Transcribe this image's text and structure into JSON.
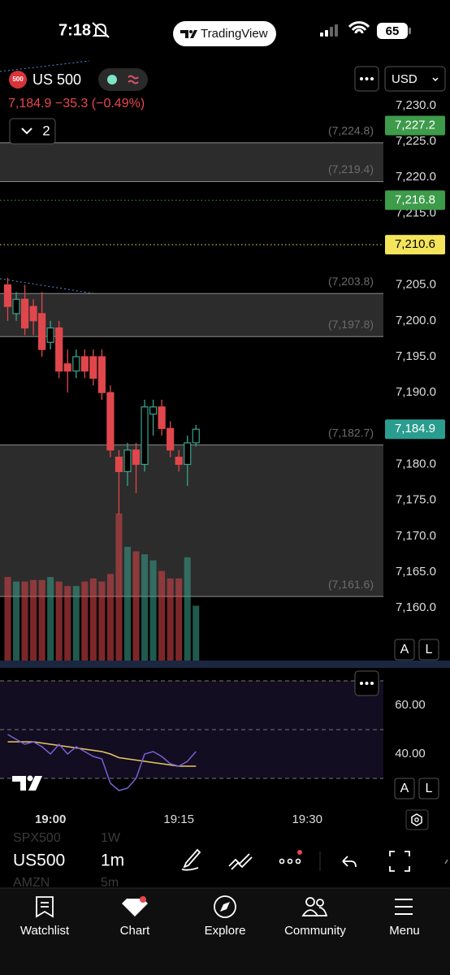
{
  "status_bar": {
    "time": "7:18",
    "battery": "65",
    "pill": "TradingView"
  },
  "header": {
    "badge": "500",
    "symbol": "US 500",
    "last": "7,184.9",
    "change": "−35.3",
    "change_pct": "(−0.49%)",
    "collapse_count": "2",
    "currency": "USD"
  },
  "chart_data": {
    "type": "candlestick",
    "x": [
      -5,
      -4,
      -3,
      -2,
      -1,
      0,
      1,
      2,
      3,
      4,
      5,
      6,
      7,
      8,
      9,
      10,
      11,
      12,
      13,
      14,
      15,
      16,
      17
    ],
    "open": [
      7205,
      7201,
      7203,
      7202,
      7201,
      7197,
      7199,
      7194,
      7193,
      7195,
      7195,
      7195,
      7190,
      7181,
      7179,
      7182,
      7180,
      7187,
      7188,
      7185,
      7181,
      7180,
      7183
    ],
    "high": [
      7206,
      7204,
      7205,
      7203,
      7204,
      7200,
      7200,
      7196,
      7196,
      7196,
      7196,
      7196,
      7191,
      7182,
      7183,
      7183,
      7189,
      7189,
      7189,
      7186,
      7182,
      7184,
      7185.5
    ],
    "low": [
      7200,
      7200,
      7198,
      7198,
      7195,
      7196,
      7192,
      7190,
      7192,
      7192,
      7191,
      7189,
      7181,
      7173,
      7177,
      7176,
      7179,
      7184,
      7184,
      7181,
      7179,
      7177,
      7182.5
    ],
    "close": [
      7202,
      7203,
      7199,
      7200,
      7196,
      7199,
      7193,
      7193,
      7195,
      7193,
      7192,
      7190,
      7182,
      7179,
      7182,
      7180,
      7188,
      7188,
      7185,
      7182,
      7180,
      7183,
      7184.9
    ],
    "volume": [
      58,
      55,
      55,
      56,
      56,
      58,
      55,
      52,
      52,
      55,
      57,
      55,
      60,
      100,
      78,
      75,
      73,
      69,
      62,
      57,
      57,
      71,
      39
    ],
    "up_color": "#3aa38c",
    "down_color": "#e0474c",
    "xlim": [
      -5.9,
      38.9
    ],
    "ylim": [
      7152.1,
      7237.9
    ],
    "xticks": [
      {
        "value": 0,
        "label": "19:00"
      },
      {
        "value": 15,
        "label": "19:15"
      },
      {
        "value": 30,
        "label": "19:30"
      }
    ],
    "yticks": [
      {
        "value": 7230,
        "label": "7,230.0"
      },
      {
        "value": 7225,
        "label": "7,225.0"
      },
      {
        "value": 7220,
        "label": "7,220.0"
      },
      {
        "value": 7215,
        "label": "7,215.0"
      },
      {
        "value": 7210,
        "label": "7,210.0"
      },
      {
        "value": 7205,
        "label": "7,205.0"
      },
      {
        "value": 7200,
        "label": "7,200.0"
      },
      {
        "value": 7195,
        "label": "7,195.0"
      },
      {
        "value": 7190,
        "label": "7,190.0"
      },
      {
        "value": 7185,
        "label": "7,185.0"
      },
      {
        "value": 7180,
        "label": "7,180.0"
      },
      {
        "value": 7175,
        "label": "7,175.0"
      },
      {
        "value": 7170,
        "label": "7,170.0"
      },
      {
        "value": 7165,
        "label": "7,165.0"
      },
      {
        "value": 7160,
        "label": "7,160.0"
      }
    ],
    "zones": [
      {
        "top": 7224.8,
        "bottom": 7219.4,
        "top_label": "(7,224.8)",
        "bottom_label": "(7,219.4)"
      },
      {
        "top": 7203.8,
        "bottom": 7197.8,
        "top_label": "(7,203.8)",
        "bottom_label": "(7,197.8)"
      },
      {
        "top": 7182.7,
        "bottom": 7161.6,
        "top_label": "(7,182.7)",
        "bottom_label": "(7,161.6)"
      }
    ],
    "badges": [
      {
        "value": 7227.2,
        "label": "7,227.2",
        "color": "#3d9b4a",
        "dotted_line": false
      },
      {
        "value": 7216.8,
        "label": "7,216.8",
        "color": "#3d9b4a",
        "dotted_line": true
      },
      {
        "value": 7210.6,
        "label": "7,210.6",
        "color": "#f3e45a",
        "dotted_line": true
      },
      {
        "value": 7184.9,
        "label": "7,184.9",
        "color": "#2a9d8f",
        "dotted_line": false
      }
    ],
    "rsi": {
      "values": [
        48,
        46,
        44,
        45,
        43,
        40,
        44,
        40,
        43,
        41,
        39,
        38,
        28,
        25,
        26,
        30,
        40,
        41,
        39,
        36,
        35,
        37,
        41
      ],
      "ma": [
        45,
        45,
        45,
        45,
        44.5,
        44,
        43.5,
        43,
        42.5,
        42,
        41.5,
        41,
        40,
        38.5,
        38,
        37.5,
        37,
        36.5,
        36,
        35.5,
        35,
        35,
        35
      ],
      "color": "#7b5fd6",
      "ma_color": "#e8c766",
      "ylim": [
        20,
        73
      ],
      "yticks": [
        {
          "value": 60,
          "label": "60.00"
        },
        {
          "value": 40,
          "label": "40.00"
        }
      ],
      "levels": [
        70,
        50,
        30
      ]
    }
  },
  "scale_buttons": [
    "A",
    "L"
  ],
  "toolbar": {
    "symbol": "US500",
    "interval": "1m",
    "prev_symbol": "SPX500",
    "prev_interval": "1W",
    "next_symbol": "AMZN",
    "next_interval": "5m"
  },
  "nav": [
    "Watchlist",
    "Chart",
    "Explore",
    "Community",
    "Menu"
  ]
}
